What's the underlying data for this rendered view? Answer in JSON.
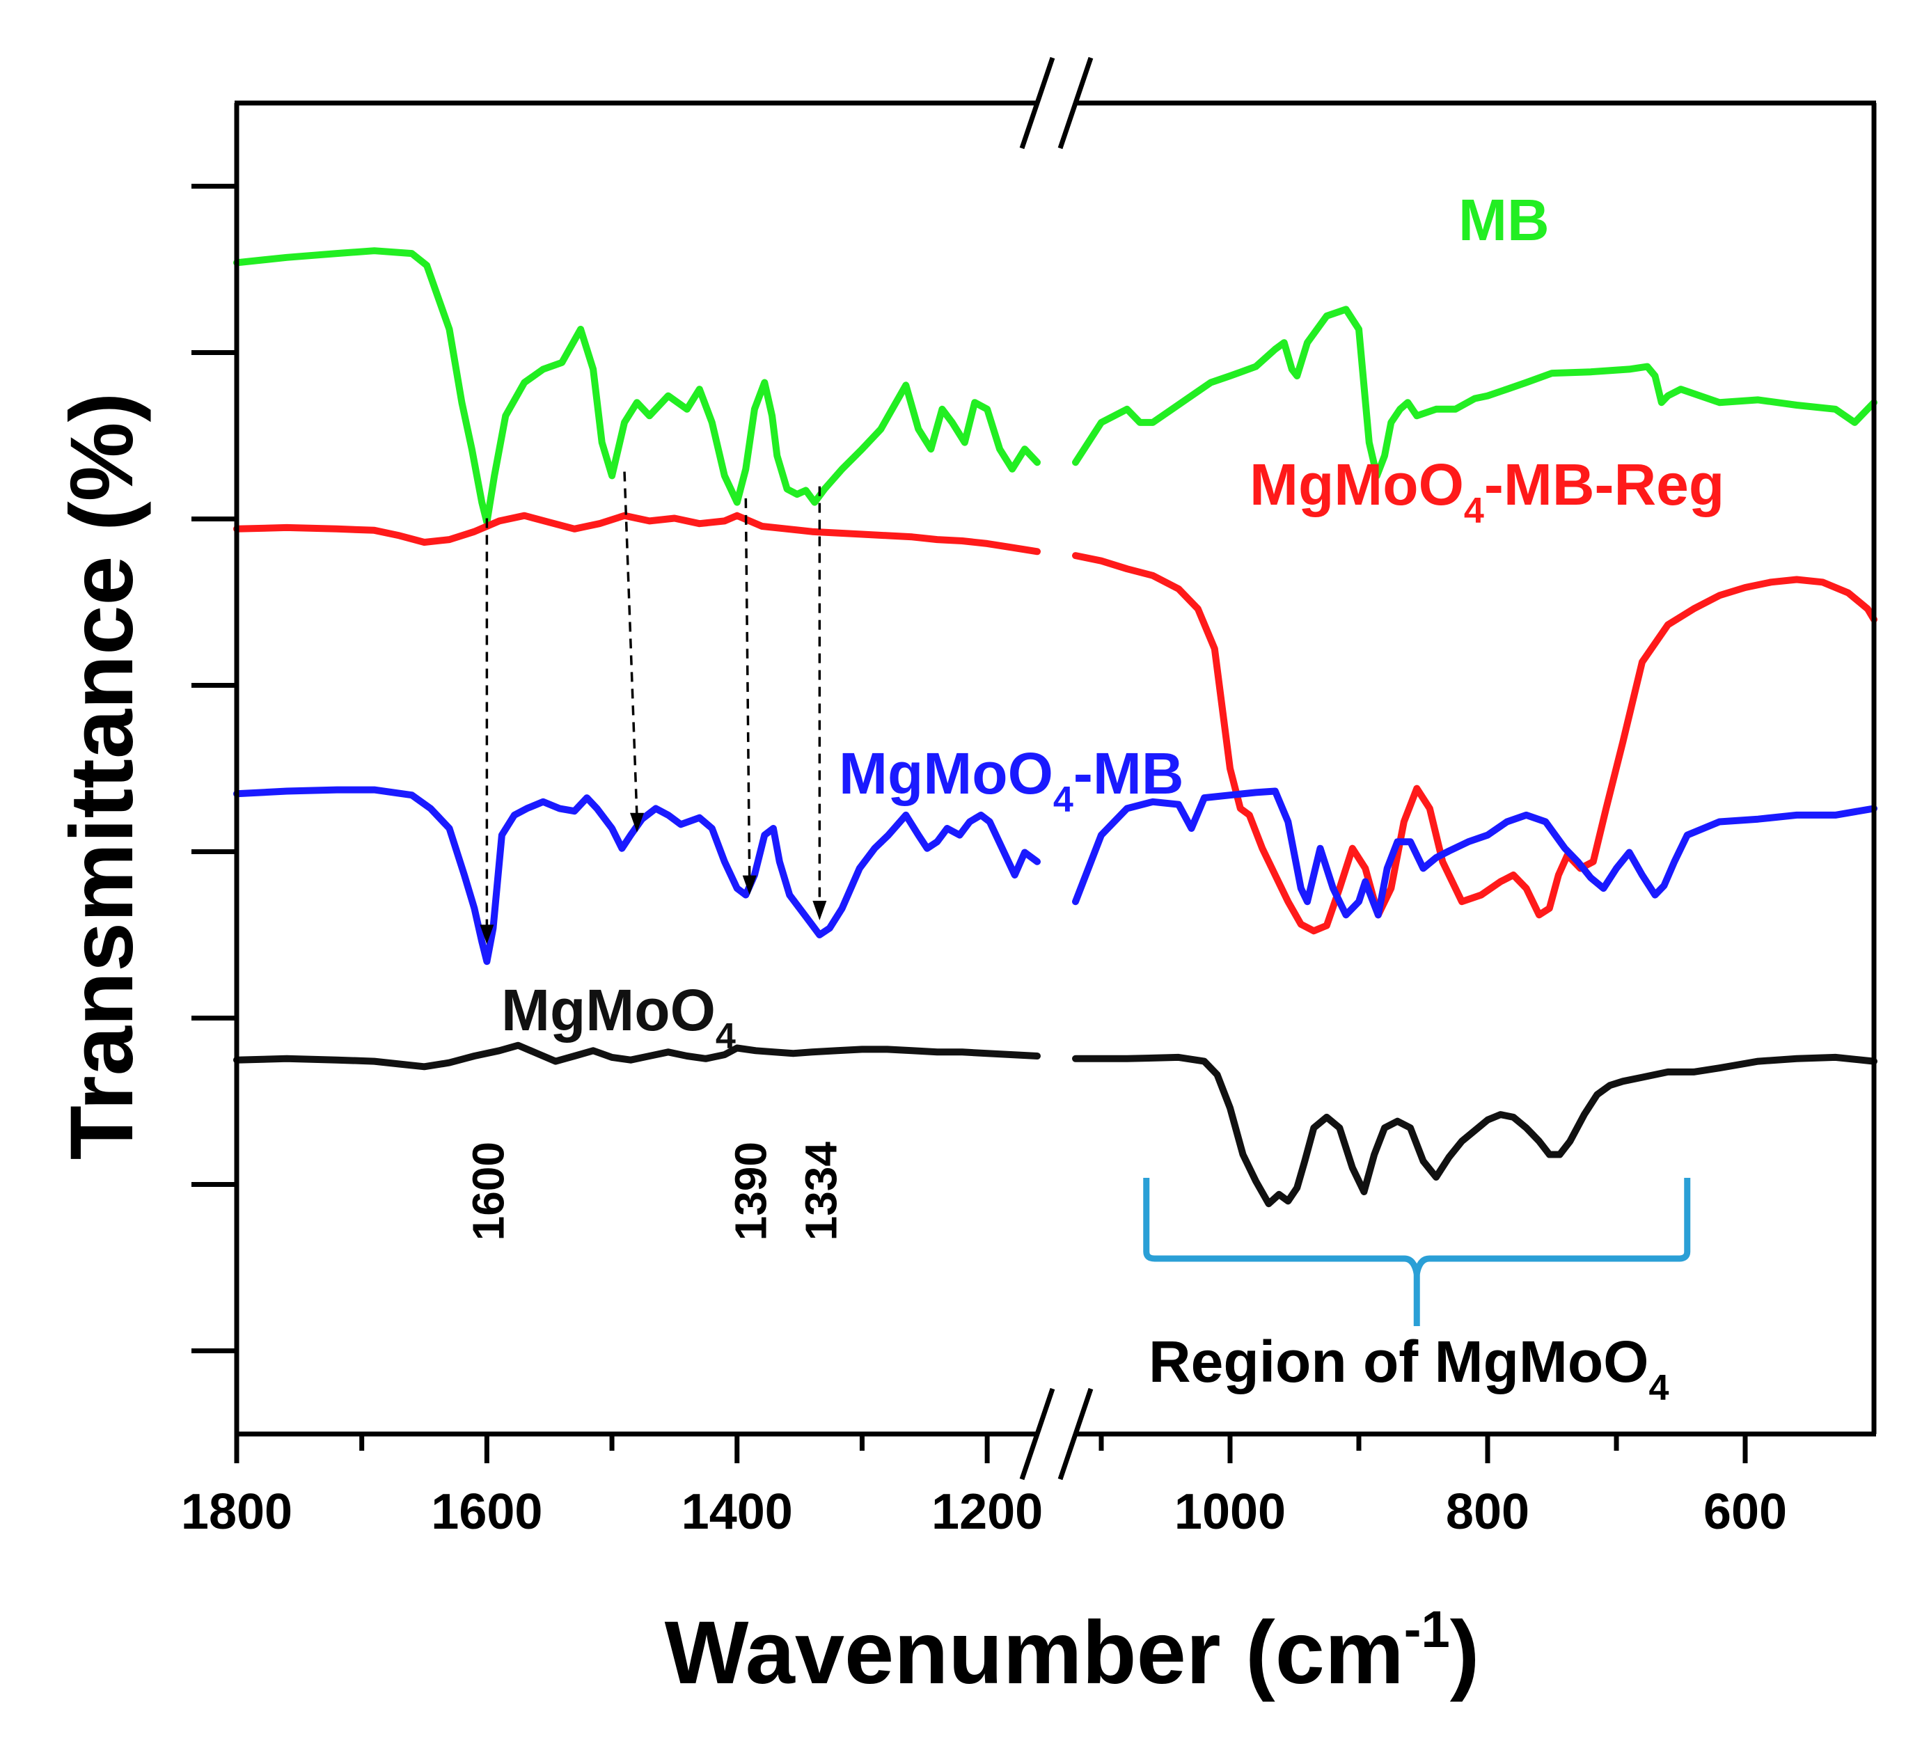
{
  "chart_data": {
    "type": "line",
    "title": "",
    "xlabel": "Wavenumber (cm",
    "xlabel_sup": "-1",
    "xlabel_close": ")",
    "ylabel": "Transmittance (%)",
    "xlim": [
      1800,
      500
    ],
    "axis_break": [
      1160,
      1120
    ],
    "ylim": [
      0,
      1
    ],
    "grid": false,
    "x_ticks": [
      {
        "value": 1800,
        "label": "1800"
      },
      {
        "value": 1600,
        "label": "1600"
      },
      {
        "value": 1400,
        "label": "1400"
      },
      {
        "value": 1200,
        "label": "1200"
      },
      {
        "value": 1000,
        "label": "1000"
      },
      {
        "value": 800,
        "label": "800"
      },
      {
        "value": 600,
        "label": "600"
      }
    ],
    "series": [
      {
        "name": "MB",
        "label": "MB",
        "color": "#22ee22",
        "segments": [
          {
            "x": [
              1800,
              1760,
              1720,
              1690,
              1660,
              1648,
              1630,
              1620,
              1612,
              1604,
              1600,
              1594,
              1585,
              1570,
              1555,
              1540,
              1525,
              1515,
              1508,
              1500,
              1490,
              1480,
              1470,
              1455,
              1440,
              1430,
              1420,
              1410,
              1400,
              1393,
              1386,
              1378,
              1372,
              1368,
              1360,
              1352,
              1345,
              1338,
              1330,
              1316,
              1300,
              1285,
              1276,
              1265,
              1255,
              1245,
              1236,
              1228,
              1218,
              1210,
              1200,
              1190,
              1180,
              1170,
              1160
            ],
            "y": [
              0.88,
              0.884,
              0.887,
              0.889,
              0.887,
              0.878,
              0.83,
              0.775,
              0.74,
              0.7,
              0.685,
              0.72,
              0.765,
              0.79,
              0.8,
              0.805,
              0.83,
              0.8,
              0.745,
              0.72,
              0.76,
              0.775,
              0.765,
              0.78,
              0.77,
              0.785,
              0.76,
              0.72,
              0.7,
              0.725,
              0.77,
              0.79,
              0.765,
              0.735,
              0.71,
              0.706,
              0.709,
              0.7,
              0.71,
              0.725,
              0.74,
              0.755,
              0.77,
              0.788,
              0.755,
              0.74,
              0.77,
              0.76,
              0.745,
              0.775,
              0.77,
              0.74,
              0.725,
              0.74,
              0.73
            ]
          },
          {
            "x": [
              1120,
              1100,
              1080,
              1070,
              1060,
              1045,
              1030,
              1015,
              1000,
              980,
              965,
              958,
              952,
              948,
              940,
              925,
              910,
              900,
              892,
              886,
              880,
              875,
              868,
              862,
              855,
              840,
              825,
              810,
              800,
              785,
              770,
              750,
              720,
              690,
              676,
              670,
              665,
              660,
              650,
              620,
              590,
              560,
              530,
              515,
              500
            ],
            "y": [
              0.73,
              0.76,
              0.77,
              0.76,
              0.76,
              0.77,
              0.78,
              0.79,
              0.795,
              0.802,
              0.815,
              0.82,
              0.8,
              0.795,
              0.82,
              0.84,
              0.845,
              0.83,
              0.745,
              0.72,
              0.735,
              0.76,
              0.77,
              0.775,
              0.765,
              0.77,
              0.77,
              0.778,
              0.78,
              0.785,
              0.79,
              0.797,
              0.798,
              0.8,
              0.802,
              0.795,
              0.775,
              0.78,
              0.785,
              0.775,
              0.777,
              0.773,
              0.77,
              0.76,
              0.775
            ]
          }
        ]
      },
      {
        "name": "MgMoO4-MB-Reg",
        "label": "MgMoO",
        "label_sub": "4",
        "label_tail": "-MB-Reg",
        "color": "#ff1a1a",
        "segments": [
          {
            "x": [
              1800,
              1760,
              1720,
              1690,
              1670,
              1650,
              1630,
              1610,
              1590,
              1570,
              1550,
              1530,
              1510,
              1490,
              1470,
              1450,
              1430,
              1410,
              1400,
              1380,
              1360,
              1340,
              1320,
              1300,
              1280,
              1260,
              1240,
              1220,
              1200,
              1180,
              1160
            ],
            "y": [
              0.68,
              0.681,
              0.68,
              0.679,
              0.675,
              0.67,
              0.672,
              0.678,
              0.686,
              0.69,
              0.685,
              0.68,
              0.684,
              0.69,
              0.686,
              0.688,
              0.684,
              0.686,
              0.69,
              0.682,
              0.68,
              0.678,
              0.677,
              0.676,
              0.675,
              0.674,
              0.672,
              0.671,
              0.669,
              0.666,
              0.663
            ]
          },
          {
            "x": [
              1120,
              1100,
              1080,
              1060,
              1040,
              1025,
              1012,
              1000,
              992,
              985,
              975,
              965,
              955,
              945,
              935,
              925,
              915,
              905,
              895,
              885,
              875,
              865,
              855,
              845,
              835,
              820,
              805,
              790,
              780,
              770,
              760,
              752,
              745,
              738,
              728,
              718,
              708,
              695,
              680,
              660,
              640,
              620,
              600,
              580,
              560,
              540,
              520,
              505,
              500
            ],
            "y": [
              0.66,
              0.656,
              0.65,
              0.645,
              0.635,
              0.62,
              0.59,
              0.5,
              0.47,
              0.465,
              0.44,
              0.42,
              0.4,
              0.383,
              0.378,
              0.382,
              0.41,
              0.44,
              0.425,
              0.39,
              0.41,
              0.46,
              0.485,
              0.47,
              0.43,
              0.4,
              0.405,
              0.415,
              0.42,
              0.41,
              0.39,
              0.395,
              0.42,
              0.435,
              0.425,
              0.43,
              0.47,
              0.52,
              0.58,
              0.608,
              0.62,
              0.63,
              0.636,
              0.64,
              0.642,
              0.64,
              0.632,
              0.62,
              0.612
            ]
          }
        ]
      },
      {
        "name": "MgMoO4-MB",
        "label": "MgMoO",
        "label_sub": "4",
        "label_tail": "-MB",
        "color": "#1a1aff",
        "segments": [
          {
            "x": [
              1800,
              1760,
              1720,
              1690,
              1660,
              1645,
              1630,
              1618,
              1610,
              1604,
              1600,
              1595,
              1588,
              1578,
              1568,
              1555,
              1542,
              1530,
              1520,
              1512,
              1500,
              1492,
              1485,
              1476,
              1465,
              1455,
              1445,
              1430,
              1420,
              1410,
              1400,
              1393,
              1386,
              1378,
              1371,
              1366,
              1358,
              1350,
              1342,
              1334,
              1326,
              1316,
              1302,
              1290,
              1279,
              1265,
              1255,
              1248,
              1240,
              1232,
              1222,
              1214,
              1205,
              1198,
              1188,
              1178,
              1170,
              1160
            ],
            "y": [
              0.481,
              0.483,
              0.484,
              0.484,
              0.48,
              0.47,
              0.455,
              0.42,
              0.395,
              0.37,
              0.355,
              0.38,
              0.45,
              0.465,
              0.47,
              0.475,
              0.47,
              0.468,
              0.478,
              0.47,
              0.455,
              0.44,
              0.45,
              0.462,
              0.47,
              0.465,
              0.458,
              0.463,
              0.455,
              0.43,
              0.41,
              0.405,
              0.42,
              0.45,
              0.455,
              0.43,
              0.405,
              0.395,
              0.385,
              0.375,
              0.38,
              0.395,
              0.425,
              0.44,
              0.45,
              0.465,
              0.45,
              0.44,
              0.445,
              0.455,
              0.45,
              0.46,
              0.465,
              0.46,
              0.44,
              0.42,
              0.437,
              0.43
            ]
          },
          {
            "x": [
              1120,
              1100,
              1080,
              1060,
              1040,
              1030,
              1020,
              1000,
              980,
              965,
              955,
              945,
              940,
              930,
              920,
              910,
              900,
              895,
              885,
              878,
              870,
              860,
              850,
              840,
              830,
              815,
              800,
              785,
              770,
              755,
              740,
              730,
              720,
              710,
              700,
              690,
              680,
              670,
              663,
              655,
              645,
              620,
              590,
              560,
              530,
              500
            ],
            "y": [
              0.4,
              0.45,
              0.47,
              0.475,
              0.473,
              0.455,
              0.478,
              0.48,
              0.482,
              0.483,
              0.46,
              0.41,
              0.4,
              0.44,
              0.41,
              0.39,
              0.4,
              0.415,
              0.39,
              0.425,
              0.445,
              0.445,
              0.425,
              0.433,
              0.438,
              0.445,
              0.45,
              0.46,
              0.465,
              0.46,
              0.44,
              0.43,
              0.418,
              0.41,
              0.425,
              0.437,
              0.42,
              0.405,
              0.412,
              0.43,
              0.45,
              0.46,
              0.462,
              0.465,
              0.465,
              0.47
            ]
          }
        ]
      },
      {
        "name": "MgMoO4",
        "label": "MgMoO",
        "label_sub": "4",
        "label_tail": "",
        "color": "#111111",
        "segments": [
          {
            "x": [
              1800,
              1760,
              1720,
              1690,
              1670,
              1650,
              1630,
              1610,
              1590,
              1575,
              1560,
              1545,
              1530,
              1515,
              1500,
              1485,
              1470,
              1455,
              1440,
              1425,
              1410,
              1400,
              1385,
              1370,
              1355,
              1340,
              1320,
              1300,
              1280,
              1260,
              1240,
              1220,
              1200,
              1180,
              1160
            ],
            "y": [
              0.281,
              0.282,
              0.281,
              0.28,
              0.278,
              0.276,
              0.279,
              0.284,
              0.288,
              0.292,
              0.286,
              0.28,
              0.284,
              0.288,
              0.283,
              0.281,
              0.284,
              0.287,
              0.284,
              0.282,
              0.285,
              0.29,
              0.288,
              0.287,
              0.286,
              0.287,
              0.288,
              0.289,
              0.289,
              0.288,
              0.287,
              0.287,
              0.286,
              0.285,
              0.284
            ]
          },
          {
            "x": [
              1120,
              1080,
              1040,
              1020,
              1010,
              1000,
              990,
              980,
              970,
              962,
              955,
              948,
              942,
              935,
              925,
              915,
              905,
              896,
              888,
              880,
              870,
              860,
              850,
              840,
              830,
              820,
              810,
              800,
              790,
              780,
              770,
              760,
              752,
              744,
              736,
              725,
              715,
              705,
              695,
              680,
              660,
              640,
              620,
              590,
              560,
              530,
              500
            ],
            "y": [
              0.282,
              0.282,
              0.283,
              0.28,
              0.27,
              0.245,
              0.21,
              0.19,
              0.173,
              0.18,
              0.175,
              0.185,
              0.205,
              0.23,
              0.238,
              0.23,
              0.2,
              0.182,
              0.21,
              0.23,
              0.235,
              0.23,
              0.205,
              0.193,
              0.208,
              0.22,
              0.228,
              0.236,
              0.24,
              0.238,
              0.23,
              0.22,
              0.21,
              0.21,
              0.22,
              0.24,
              0.255,
              0.262,
              0.265,
              0.268,
              0.272,
              0.272,
              0.275,
              0.28,
              0.282,
              0.283,
              0.28
            ]
          }
        ]
      }
    ],
    "peak_labels": [
      {
        "x": 1600,
        "label": "1600"
      },
      {
        "x": 1390,
        "label": "1390"
      },
      {
        "x": 1334,
        "label": "1334"
      }
    ],
    "arrows": [
      {
        "x_from": 1600,
        "x_to": 1600
      },
      {
        "x_from": 1490,
        "x_to": 1480
      },
      {
        "x_from": 1393,
        "x_to": 1390
      },
      {
        "x_from": 1334,
        "x_to": 1334
      }
    ],
    "region": {
      "x_start": 1065,
      "x_end": 645,
      "label": "Region of MgMoO",
      "label_sub": "4",
      "color": "#2a9fd6"
    }
  }
}
